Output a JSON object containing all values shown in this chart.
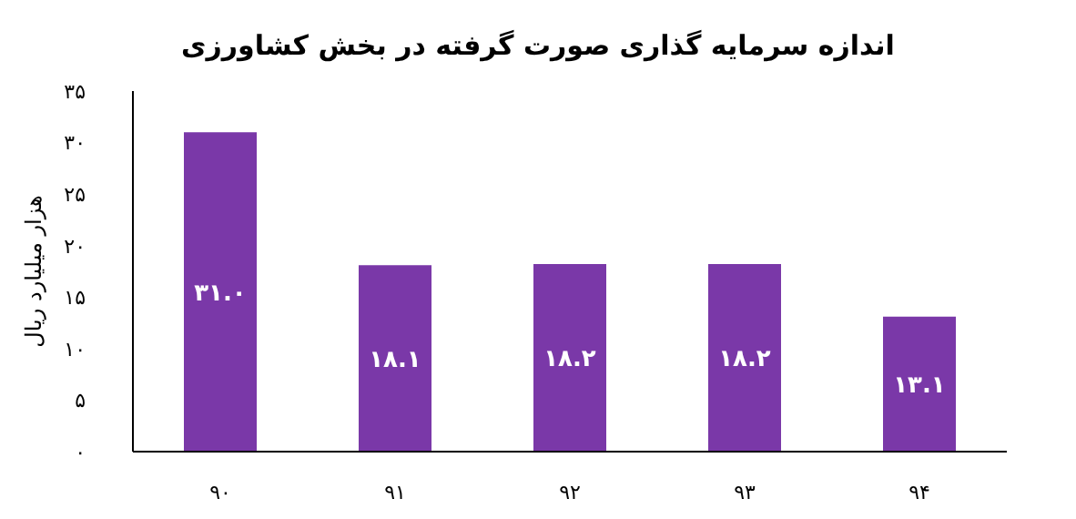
{
  "chart_data": {
    "type": "bar",
    "title": "اندازه سرمایه گذاری صورت گرفته در بخش کشاورزی",
    "ylabel": "هزار میلیارد ریال",
    "categories": [
      "۹۰",
      "۹۱",
      "۹۲",
      "۹۳",
      "۹۴"
    ],
    "values": [
      31.0,
      18.1,
      18.2,
      18.2,
      13.1
    ],
    "value_labels": [
      "۳۱.۰",
      "۱۸.۱",
      "۱۸.۲",
      "۱۸.۲",
      "۱۳.۱"
    ],
    "color": "#7a38a8",
    "ylim": [
      0,
      35
    ],
    "yticks": [
      {
        "value": 0,
        "label": "۰"
      },
      {
        "value": 5,
        "label": "۵"
      },
      {
        "value": 10,
        "label": "۱۰"
      },
      {
        "value": 15,
        "label": "۱۵"
      },
      {
        "value": 20,
        "label": "۲۰"
      },
      {
        "value": 25,
        "label": "۲۵"
      },
      {
        "value": 30,
        "label": "۳۰"
      },
      {
        "value": 35,
        "label": "۳۵"
      }
    ],
    "grid": false,
    "legend": false
  }
}
